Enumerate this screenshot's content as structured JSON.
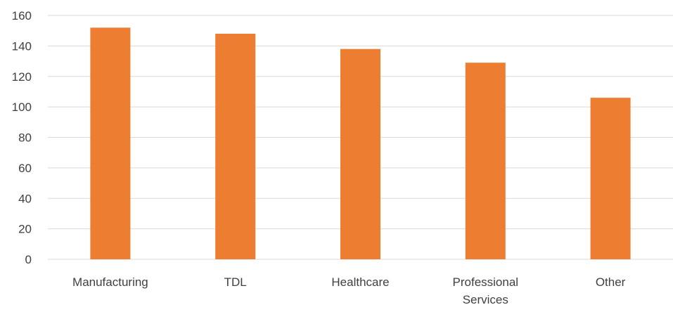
{
  "chart_data": {
    "type": "bar",
    "categories": [
      [
        "Manufacturing"
      ],
      [
        "TDL"
      ],
      [
        "Healthcare"
      ],
      [
        "Professional",
        "Services"
      ],
      [
        "Other"
      ]
    ],
    "values": [
      152,
      148,
      138,
      129,
      106
    ],
    "ylim": [
      0,
      160
    ],
    "yticks": [
      0,
      20,
      40,
      60,
      80,
      100,
      120,
      140,
      160
    ],
    "grid": true,
    "legend": "none",
    "colors": {
      "bar": "#ED7D31",
      "grid": "#D9D9D9",
      "text": "#404040"
    }
  }
}
